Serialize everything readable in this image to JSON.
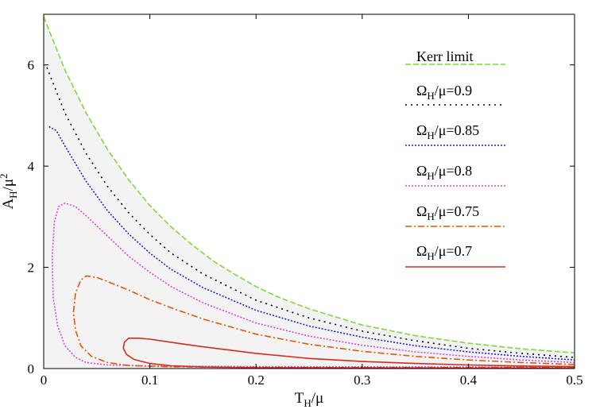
{
  "chart_data": {
    "type": "line",
    "title": "",
    "xlabel": "T_H/μ",
    "ylabel": "A_H/μ²",
    "xlim": [
      0,
      0.5
    ],
    "ylim": [
      0,
      7
    ],
    "x_ticks": [
      "0",
      "0.1",
      "0.2",
      "0.3",
      "0.4",
      "0.5"
    ],
    "y_ticks": [
      "0",
      "2",
      "4",
      "6"
    ],
    "grid": false,
    "legend_position": "top-right",
    "shaded_region": "below Kerr limit",
    "series": [
      {
        "name": "Kerr limit",
        "label_main": "Kerr limit",
        "label_sub": "",
        "label_tail": "",
        "color": "#7fd83c",
        "dash": "7,3",
        "points": [
          [
            0,
            6.95
          ],
          [
            0.02,
            5.9
          ],
          [
            0.04,
            5.05
          ],
          [
            0.06,
            4.33
          ],
          [
            0.08,
            3.73
          ],
          [
            0.1,
            3.22
          ],
          [
            0.12,
            2.8
          ],
          [
            0.14,
            2.44
          ],
          [
            0.16,
            2.12
          ],
          [
            0.18,
            1.86
          ],
          [
            0.2,
            1.62
          ],
          [
            0.22,
            1.42
          ],
          [
            0.25,
            1.18
          ],
          [
            0.3,
            0.86
          ],
          [
            0.35,
            0.65
          ],
          [
            0.4,
            0.5
          ],
          [
            0.45,
            0.39
          ],
          [
            0.5,
            0.31
          ]
        ]
      },
      {
        "name": "ΩH/μ=0.9",
        "label_main": "Ω",
        "label_sub": "H",
        "label_tail": "/μ=0.9",
        "color": "#000000",
        "dash": "2,5",
        "points": [
          [
            0.003,
            5.95
          ],
          [
            0.02,
            5.05
          ],
          [
            0.04,
            4.25
          ],
          [
            0.06,
            3.6
          ],
          [
            0.08,
            3.08
          ],
          [
            0.1,
            2.65
          ],
          [
            0.12,
            2.28
          ],
          [
            0.15,
            1.87
          ],
          [
            0.2,
            1.35
          ],
          [
            0.25,
            1.0
          ],
          [
            0.3,
            0.74
          ],
          [
            0.35,
            0.55
          ],
          [
            0.4,
            0.4
          ],
          [
            0.45,
            0.3
          ],
          [
            0.5,
            0.22
          ]
        ]
      },
      {
        "name": "ΩH/μ=0.85",
        "label_main": "Ω",
        "label_sub": "H",
        "label_tail": "/μ=0.85",
        "color": "#2020e0",
        "dash": "2,2",
        "points": [
          [
            0.005,
            4.78
          ],
          [
            0.012,
            4.7
          ],
          [
            0.02,
            4.4
          ],
          [
            0.04,
            3.7
          ],
          [
            0.06,
            3.12
          ],
          [
            0.08,
            2.66
          ],
          [
            0.1,
            2.28
          ],
          [
            0.12,
            1.96
          ],
          [
            0.15,
            1.6
          ],
          [
            0.2,
            1.15
          ],
          [
            0.25,
            0.84
          ],
          [
            0.3,
            0.62
          ],
          [
            0.35,
            0.45
          ],
          [
            0.4,
            0.33
          ],
          [
            0.45,
            0.24
          ],
          [
            0.5,
            0.17
          ]
        ]
      },
      {
        "name": "ΩH/μ=0.8",
        "label_main": "Ω",
        "label_sub": "H",
        "label_tail": "/μ=0.8",
        "color": "#e040e0",
        "dash": "2,2",
        "points": [
          [
            0.5,
            0.12
          ],
          [
            0.45,
            0.17
          ],
          [
            0.4,
            0.24
          ],
          [
            0.35,
            0.33
          ],
          [
            0.3,
            0.46
          ],
          [
            0.25,
            0.64
          ],
          [
            0.2,
            0.9
          ],
          [
            0.15,
            1.3
          ],
          [
            0.12,
            1.62
          ],
          [
            0.1,
            1.9
          ],
          [
            0.08,
            2.22
          ],
          [
            0.06,
            2.62
          ],
          [
            0.04,
            3.02
          ],
          [
            0.03,
            3.2
          ],
          [
            0.02,
            3.27
          ],
          [
            0.014,
            3.2
          ],
          [
            0.01,
            2.9
          ],
          [
            0.008,
            2.2
          ],
          [
            0.009,
            1.4
          ],
          [
            0.013,
            0.85
          ],
          [
            0.02,
            0.45
          ],
          [
            0.03,
            0.22
          ],
          [
            0.04,
            0.12
          ],
          [
            0.06,
            0.07
          ],
          [
            0.1,
            0.05
          ],
          [
            0.15,
            0.045
          ],
          [
            0.2,
            0.04
          ],
          [
            0.3,
            0.035
          ],
          [
            0.4,
            0.03
          ],
          [
            0.5,
            0.03
          ]
        ]
      },
      {
        "name": "ΩH/μ=0.75",
        "label_main": "Ω",
        "label_sub": "H",
        "label_tail": "/μ=0.75",
        "color": "#e05a00",
        "dash": "8,3,2,3",
        "points": [
          [
            0.5,
            0.08
          ],
          [
            0.45,
            0.12
          ],
          [
            0.4,
            0.17
          ],
          [
            0.35,
            0.24
          ],
          [
            0.3,
            0.34
          ],
          [
            0.25,
            0.48
          ],
          [
            0.2,
            0.68
          ],
          [
            0.15,
            0.98
          ],
          [
            0.12,
            1.2
          ],
          [
            0.1,
            1.36
          ],
          [
            0.08,
            1.55
          ],
          [
            0.06,
            1.72
          ],
          [
            0.05,
            1.8
          ],
          [
            0.04,
            1.83
          ],
          [
            0.035,
            1.75
          ],
          [
            0.03,
            1.5
          ],
          [
            0.028,
            1.1
          ],
          [
            0.03,
            0.75
          ],
          [
            0.035,
            0.45
          ],
          [
            0.045,
            0.24
          ],
          [
            0.06,
            0.12
          ],
          [
            0.08,
            0.06
          ],
          [
            0.12,
            0.035
          ],
          [
            0.2,
            0.025
          ],
          [
            0.3,
            0.02
          ],
          [
            0.4,
            0.02
          ],
          [
            0.5,
            0.02
          ]
        ]
      },
      {
        "name": "ΩH/μ=0.7",
        "label_main": "Ω",
        "label_sub": "H",
        "label_tail": "/μ=0.7",
        "color": "#d42b1e",
        "dash": "",
        "points": [
          [
            0.5,
            0.04
          ],
          [
            0.45,
            0.05
          ],
          [
            0.4,
            0.07
          ],
          [
            0.35,
            0.1
          ],
          [
            0.3,
            0.14
          ],
          [
            0.25,
            0.2
          ],
          [
            0.2,
            0.3
          ],
          [
            0.15,
            0.43
          ],
          [
            0.12,
            0.52
          ],
          [
            0.1,
            0.58
          ],
          [
            0.09,
            0.6
          ],
          [
            0.08,
            0.6
          ],
          [
            0.076,
            0.52
          ],
          [
            0.075,
            0.4
          ],
          [
            0.078,
            0.28
          ],
          [
            0.085,
            0.18
          ],
          [
            0.1,
            0.1
          ],
          [
            0.12,
            0.055
          ],
          [
            0.15,
            0.03
          ],
          [
            0.2,
            0.018
          ],
          [
            0.3,
            0.012
          ],
          [
            0.4,
            0.01
          ],
          [
            0.5,
            0.01
          ]
        ]
      }
    ]
  }
}
